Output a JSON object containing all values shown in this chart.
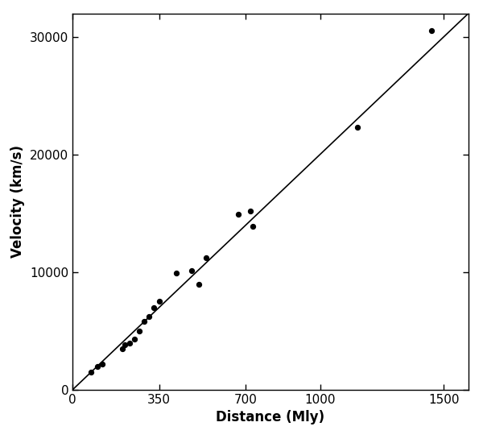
{
  "title": "",
  "xlabel": "Distance (Mly)",
  "ylabel": "Velocity (km/s)",
  "xlim": [
    0,
    1600
  ],
  "ylim": [
    0,
    32000
  ],
  "xticks": [
    0,
    350,
    700,
    1000,
    1500
  ],
  "yticks": [
    0,
    10000,
    20000,
    30000
  ],
  "ytick_labels": [
    "0",
    "10000",
    "20000",
    "30000"
  ],
  "xtick_labels": [
    "0",
    "350",
    "700",
    "1000",
    "1500"
  ],
  "scatter_x": [
    75,
    100,
    120,
    200,
    210,
    230,
    250,
    270,
    290,
    310,
    330,
    350,
    420,
    480,
    510,
    540,
    670,
    720,
    730,
    1150,
    1450
  ],
  "scatter_y": [
    1500,
    2000,
    2200,
    3500,
    3800,
    4000,
    4300,
    5000,
    5800,
    6200,
    7000,
    7500,
    9900,
    10100,
    9000,
    11200,
    14900,
    15200,
    13900,
    22300,
    30500
  ],
  "line_x": [
    0,
    1600
  ],
  "line_y": [
    0,
    32000
  ],
  "marker_size": 18,
  "marker_color": "#000000",
  "line_color": "#000000",
  "line_width": 1.2,
  "fig_width": 6.0,
  "fig_height": 5.5,
  "dpi": 100,
  "bg_color": "#ffffff",
  "spine_linewidth": 1.0,
  "tick_label_fontsize": 11,
  "axis_label_fontsize": 12,
  "label_fontweight": "bold"
}
